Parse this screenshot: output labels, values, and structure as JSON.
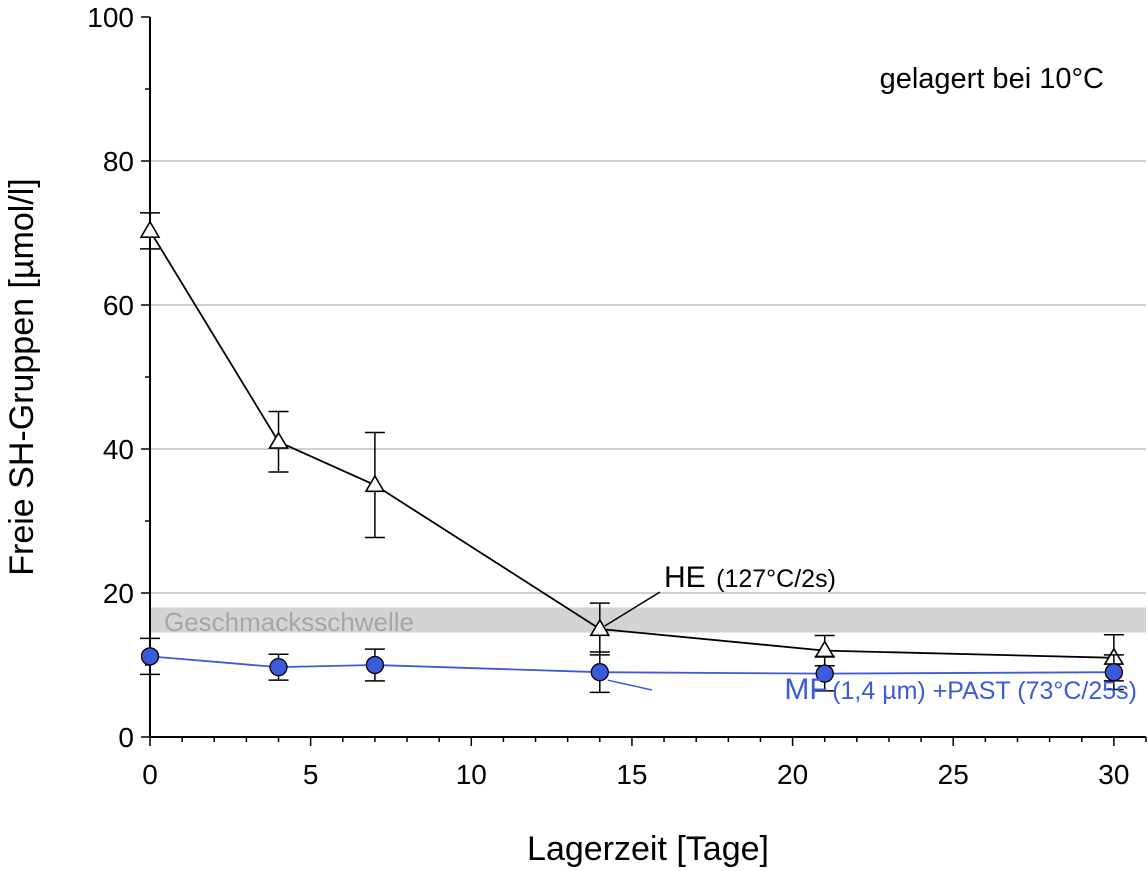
{
  "chart_data": {
    "type": "line",
    "xlabel": "Lagerzeit [Tage]",
    "ylabel": "Freie SH-Gruppen [µmol/l]",
    "xlim": [
      0,
      31
    ],
    "ylim": [
      0,
      100
    ],
    "x_ticks": [
      0,
      5,
      10,
      15,
      20,
      25,
      30
    ],
    "y_ticks": [
      0,
      20,
      40,
      60,
      80,
      100
    ],
    "x_tick_labels": [
      "0",
      "5",
      "10",
      "15",
      "20",
      "25",
      "30"
    ],
    "y_tick_labels": [
      "0",
      "20",
      "40",
      "60",
      "80",
      "100"
    ],
    "grid": {
      "horizontal": true,
      "values": [
        20,
        40,
        60,
        80
      ]
    },
    "annotation": "gelagert bei 10°C",
    "threshold": {
      "label": "Geschmacksschwelle",
      "y_from": 14.5,
      "y_to": 18.0,
      "color": "#d4d4d4"
    },
    "series": [
      {
        "name": "HE",
        "name_suffix": "(127°C/2s)",
        "marker": "triangle",
        "color": "#000000",
        "x": [
          0,
          4,
          7,
          14,
          21,
          30
        ],
        "y": [
          70.3,
          41.0,
          35.0,
          15.0,
          12.0,
          11.0
        ],
        "err": [
          2.5,
          4.2,
          7.3,
          3.6,
          2.1,
          3.2
        ]
      },
      {
        "name": "MF",
        "name_suffix": "(1,4 µm) +PAST (73°C/25s)",
        "marker": "circle",
        "color": "#3b5bdb",
        "x": [
          0,
          4,
          7,
          14,
          21,
          30
        ],
        "y": [
          11.2,
          9.7,
          10.0,
          9.0,
          8.8,
          9.0
        ],
        "err": [
          2.5,
          1.8,
          2.2,
          2.8,
          2.4,
          2.4
        ]
      }
    ]
  }
}
